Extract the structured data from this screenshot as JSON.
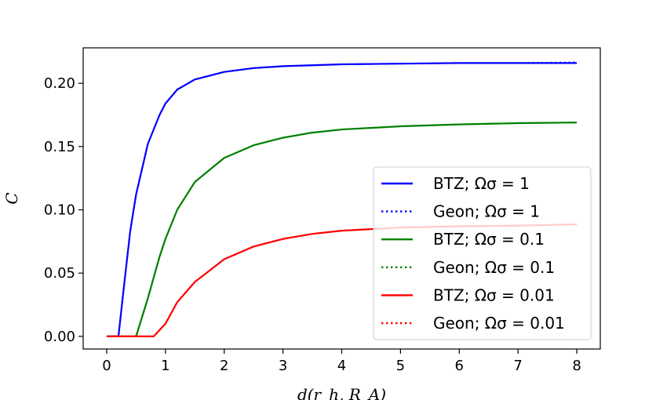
{
  "chart_data": {
    "type": "line",
    "title": "",
    "xlabel": "d(r_h, R_A)",
    "ylabel": "C",
    "xlim": [
      -0.4,
      8.4
    ],
    "ylim": [
      -0.01,
      0.228
    ],
    "xticks": [
      0,
      1,
      2,
      3,
      4,
      5,
      6,
      7,
      8
    ],
    "xtick_labels": [
      "0",
      "1",
      "2",
      "3",
      "4",
      "5",
      "6",
      "7",
      "8"
    ],
    "yticks": [
      0.0,
      0.05,
      0.1,
      0.15,
      0.2
    ],
    "ytick_labels": [
      "0.00",
      "0.05",
      "0.10",
      "0.15",
      "0.20"
    ],
    "grid": false,
    "legend_position": "center-right",
    "series": [
      {
        "name": "BTZ; Ωσ = 1",
        "style": "solid",
        "color": "#0000ff",
        "points": [
          [
            0,
            0
          ],
          [
            0.2,
            0
          ],
          [
            0.3,
            0.042
          ],
          [
            0.4,
            0.083
          ],
          [
            0.5,
            0.112
          ],
          [
            0.7,
            0.152
          ],
          [
            0.9,
            0.175
          ],
          [
            1.0,
            0.184
          ],
          [
            1.2,
            0.195
          ],
          [
            1.5,
            0.203
          ],
          [
            2.0,
            0.209
          ],
          [
            2.5,
            0.212
          ],
          [
            3.0,
            0.2135
          ],
          [
            4.0,
            0.215
          ],
          [
            5.0,
            0.2155
          ],
          [
            6.0,
            0.216
          ],
          [
            7.0,
            0.216
          ],
          [
            8.0,
            0.216
          ]
        ]
      },
      {
        "name": "Geon; Ωσ = 1",
        "style": "dotted",
        "color": "#0000ff",
        "points": [
          [
            0,
            0
          ],
          [
            0.2,
            0
          ],
          [
            0.3,
            0.042
          ],
          [
            0.4,
            0.083
          ],
          [
            0.5,
            0.112
          ],
          [
            0.7,
            0.152
          ],
          [
            0.9,
            0.175
          ],
          [
            1.0,
            0.184
          ],
          [
            1.2,
            0.195
          ],
          [
            1.5,
            0.203
          ],
          [
            2.0,
            0.209
          ],
          [
            2.5,
            0.212
          ],
          [
            3.0,
            0.2135
          ],
          [
            4.0,
            0.215
          ],
          [
            5.0,
            0.2155
          ],
          [
            6.0,
            0.216
          ],
          [
            7.0,
            0.216
          ],
          [
            8.0,
            0.2165
          ]
        ]
      },
      {
        "name": "BTZ; Ωσ = 0.1",
        "style": "solid",
        "color": "#008000",
        "points": [
          [
            0,
            0
          ],
          [
            0.5,
            0
          ],
          [
            0.7,
            0.03
          ],
          [
            0.9,
            0.063
          ],
          [
            1.0,
            0.077
          ],
          [
            1.2,
            0.1
          ],
          [
            1.5,
            0.122
          ],
          [
            2.0,
            0.141
          ],
          [
            2.5,
            0.151
          ],
          [
            3.0,
            0.157
          ],
          [
            3.5,
            0.161
          ],
          [
            4.0,
            0.1635
          ],
          [
            5.0,
            0.166
          ],
          [
            6.0,
            0.1675
          ],
          [
            7.0,
            0.1685
          ],
          [
            8.0,
            0.169
          ]
        ]
      },
      {
        "name": "Geon; Ωσ = 0.1",
        "style": "dotted",
        "color": "#008000",
        "points": [
          [
            0,
            0
          ],
          [
            0.5,
            0
          ],
          [
            0.7,
            0.03
          ],
          [
            0.9,
            0.063
          ],
          [
            1.0,
            0.077
          ],
          [
            1.2,
            0.1
          ],
          [
            1.5,
            0.122
          ],
          [
            2.0,
            0.141
          ],
          [
            2.5,
            0.151
          ],
          [
            3.0,
            0.157
          ],
          [
            3.5,
            0.161
          ],
          [
            4.0,
            0.1635
          ],
          [
            5.0,
            0.166
          ],
          [
            6.0,
            0.1675
          ],
          [
            7.0,
            0.1685
          ],
          [
            8.0,
            0.169
          ]
        ]
      },
      {
        "name": "BTZ; Ωσ = 0.01",
        "style": "solid",
        "color": "#ff0000",
        "points": [
          [
            0,
            0
          ],
          [
            0.8,
            0
          ],
          [
            1.0,
            0.01
          ],
          [
            1.2,
            0.027
          ],
          [
            1.5,
            0.043
          ],
          [
            2.0,
            0.061
          ],
          [
            2.5,
            0.071
          ],
          [
            3.0,
            0.077
          ],
          [
            3.5,
            0.081
          ],
          [
            4.0,
            0.0835
          ],
          [
            5.0,
            0.086
          ],
          [
            6.0,
            0.087
          ],
          [
            7.0,
            0.0875
          ],
          [
            8.0,
            0.0885
          ]
        ]
      },
      {
        "name": "Geon; Ωσ = 0.01",
        "style": "dotted",
        "color": "#ff0000",
        "points": [
          [
            0,
            0
          ],
          [
            0.8,
            0
          ],
          [
            1.0,
            0.01
          ],
          [
            1.2,
            0.027
          ],
          [
            1.5,
            0.043
          ],
          [
            2.0,
            0.061
          ],
          [
            2.5,
            0.071
          ],
          [
            3.0,
            0.077
          ],
          [
            3.5,
            0.081
          ],
          [
            4.0,
            0.0835
          ],
          [
            5.0,
            0.086
          ],
          [
            6.0,
            0.087
          ],
          [
            7.0,
            0.0875
          ],
          [
            8.0,
            0.0885
          ]
        ]
      }
    ]
  }
}
